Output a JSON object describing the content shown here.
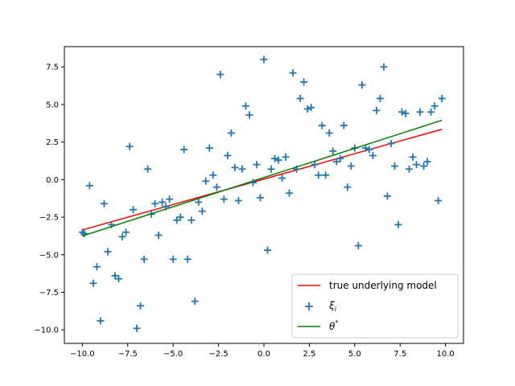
{
  "chart_data": {
    "type": "scatter",
    "xlim": [
      -10.99,
      10.99
    ],
    "ylim": [
      -10.9,
      8.85
    ],
    "x_ticks": [
      -10.0,
      -7.5,
      -5.0,
      -2.5,
      0.0,
      2.5,
      5.0,
      7.5,
      10.0
    ],
    "x_tick_labels": [
      "−10.0",
      "−7.5",
      "−5.0",
      "−2.5",
      "0.0",
      "2.5",
      "5.0",
      "7.5",
      "10.0"
    ],
    "y_ticks": [
      -10.0,
      -7.5,
      -5.0,
      -2.5,
      0.0,
      2.5,
      5.0,
      7.5
    ],
    "y_tick_labels": [
      "−10.0",
      "−7.5",
      "−5.0",
      "−2.5",
      "0.0",
      "2.5",
      "5.0",
      "7.5"
    ],
    "grid": false,
    "legend_position": "lower-right",
    "series": [
      {
        "name": "true underlying model",
        "kind": "line",
        "color": "#ff0000",
        "x": [
          -10.0,
          9.8
        ],
        "y": [
          -3.35,
          3.35
        ]
      },
      {
        "name": "ξ",
        "name_subscript": "i",
        "kind": "scatter",
        "marker": "plus",
        "color": "#1f77b4",
        "points": [
          [
            -10.0,
            -3.5
          ],
          [
            -9.9,
            -3.6
          ],
          [
            -9.6,
            -0.4
          ],
          [
            -9.4,
            -6.9
          ],
          [
            -9.2,
            -5.8
          ],
          [
            -9.0,
            -9.4
          ],
          [
            -8.8,
            -1.6
          ],
          [
            -8.6,
            -4.8
          ],
          [
            -8.4,
            -3.0
          ],
          [
            -8.2,
            -6.4
          ],
          [
            -8.0,
            -6.6
          ],
          [
            -7.8,
            -3.8
          ],
          [
            -7.6,
            -3.5
          ],
          [
            -7.4,
            2.2
          ],
          [
            -7.2,
            -2.0
          ],
          [
            -7.0,
            -9.9
          ],
          [
            -6.8,
            -8.4
          ],
          [
            -6.6,
            -5.3
          ],
          [
            -6.4,
            0.7
          ],
          [
            -6.2,
            -2.3
          ],
          [
            -6.0,
            -1.6
          ],
          [
            -5.8,
            -3.7
          ],
          [
            -5.6,
            -1.5
          ],
          [
            -5.4,
            -1.8
          ],
          [
            -5.2,
            -1.3
          ],
          [
            -5.0,
            -5.3
          ],
          [
            -4.8,
            -2.7
          ],
          [
            -4.6,
            -2.5
          ],
          [
            -4.4,
            2.0
          ],
          [
            -4.2,
            -5.3
          ],
          [
            -4.0,
            -2.7
          ],
          [
            -3.8,
            -8.1
          ],
          [
            -3.6,
            -1.5
          ],
          [
            -3.4,
            -2.1
          ],
          [
            -3.2,
            -0.1
          ],
          [
            -3.0,
            2.1
          ],
          [
            -2.8,
            0.3
          ],
          [
            -2.6,
            -0.5
          ],
          [
            -2.4,
            7.0
          ],
          [
            -2.2,
            -1.3
          ],
          [
            -2.0,
            1.6
          ],
          [
            -1.8,
            3.1
          ],
          [
            -1.6,
            0.8
          ],
          [
            -1.4,
            -1.4
          ],
          [
            -1.2,
            0.7
          ],
          [
            -1.0,
            4.9
          ],
          [
            -0.8,
            4.3
          ],
          [
            -0.6,
            -0.2
          ],
          [
            -0.4,
            1.0
          ],
          [
            -0.2,
            -1.2
          ],
          [
            0.0,
            8.0
          ],
          [
            0.2,
            -4.7
          ],
          [
            0.4,
            0.7
          ],
          [
            0.6,
            1.4
          ],
          [
            0.8,
            1.3
          ],
          [
            1.0,
            0.1
          ],
          [
            1.2,
            1.5
          ],
          [
            1.4,
            -0.9
          ],
          [
            1.6,
            7.1
          ],
          [
            1.8,
            0.7
          ],
          [
            2.0,
            5.4
          ],
          [
            2.2,
            6.5
          ],
          [
            2.4,
            4.7
          ],
          [
            2.6,
            4.8
          ],
          [
            2.8,
            1.0
          ],
          [
            3.0,
            0.3
          ],
          [
            3.2,
            3.6
          ],
          [
            3.4,
            0.3
          ],
          [
            3.6,
            3.1
          ],
          [
            3.8,
            1.9
          ],
          [
            4.0,
            1.2
          ],
          [
            4.2,
            1.4
          ],
          [
            4.4,
            3.6
          ],
          [
            4.6,
            -0.5
          ],
          [
            4.8,
            0.9
          ],
          [
            5.0,
            2.1
          ],
          [
            5.2,
            -4.4
          ],
          [
            5.4,
            6.3
          ],
          [
            5.6,
            2.1
          ],
          [
            5.8,
            2.0
          ],
          [
            6.0,
            1.6
          ],
          [
            6.2,
            4.6
          ],
          [
            6.4,
            5.4
          ],
          [
            6.6,
            7.5
          ],
          [
            6.8,
            -1.1
          ],
          [
            7.0,
            2.4
          ],
          [
            7.2,
            0.9
          ],
          [
            7.4,
            -3.0
          ],
          [
            7.6,
            4.5
          ],
          [
            7.8,
            4.4
          ],
          [
            8.0,
            0.7
          ],
          [
            8.2,
            1.5
          ],
          [
            8.4,
            1.0
          ],
          [
            8.6,
            4.5
          ],
          [
            8.8,
            0.9
          ],
          [
            9.0,
            1.2
          ],
          [
            9.2,
            4.5
          ],
          [
            9.4,
            4.9
          ],
          [
            9.6,
            -1.4
          ],
          [
            9.8,
            5.4
          ]
        ]
      },
      {
        "name": "θ",
        "name_superscript": "*",
        "kind": "line",
        "color": "#008000",
        "x": [
          -10.0,
          9.8
        ],
        "y": [
          -3.75,
          3.95
        ]
      }
    ]
  }
}
